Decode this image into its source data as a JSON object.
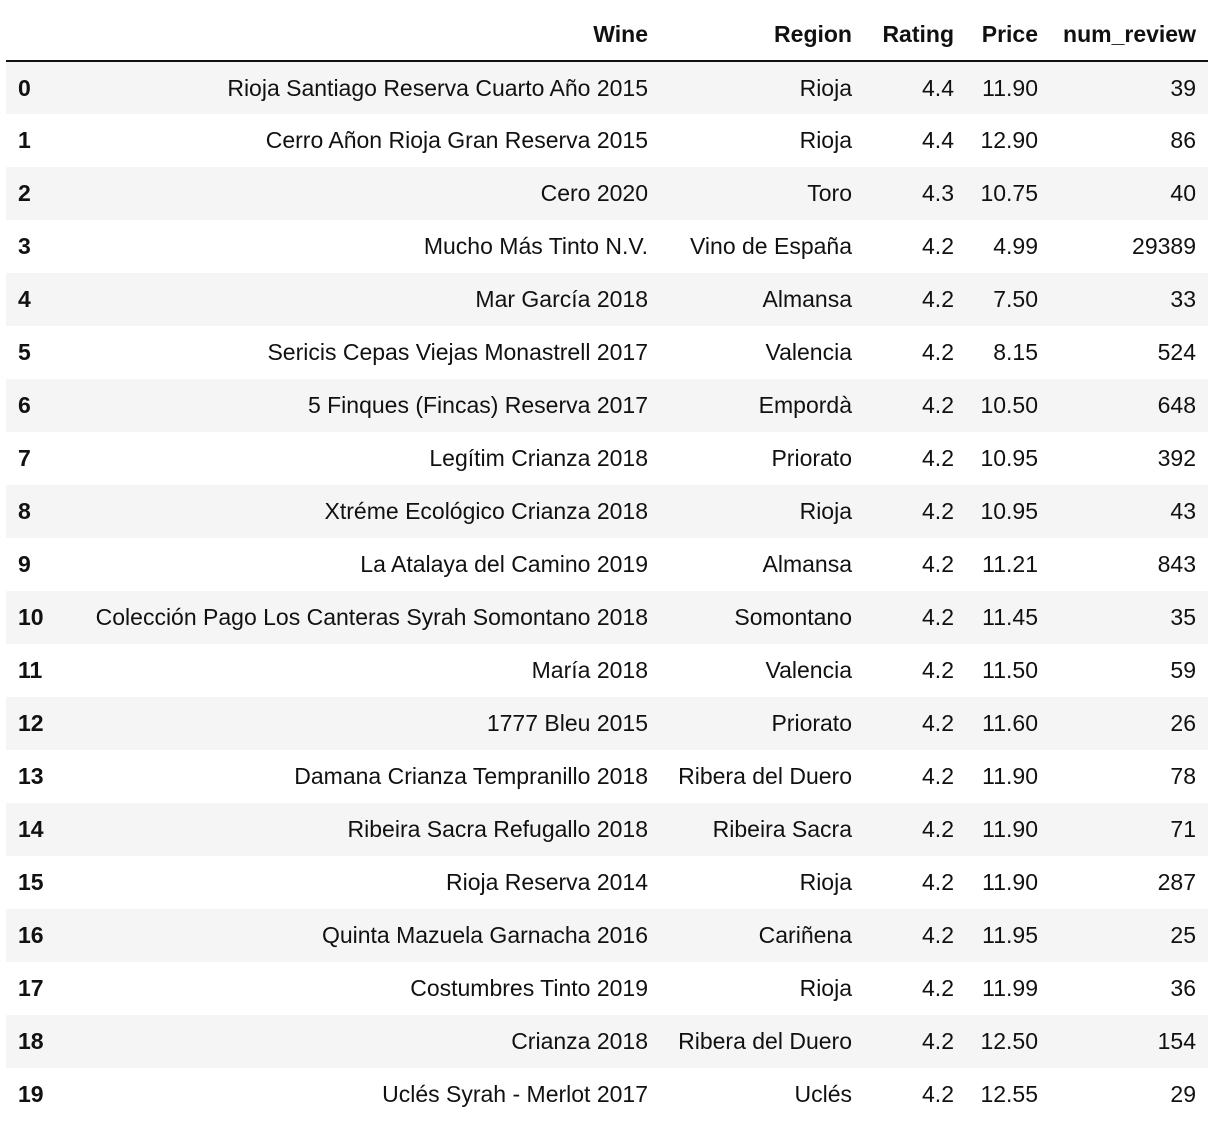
{
  "table": {
    "columns": [
      "Wine",
      "Region",
      "Rating",
      "Price",
      "num_review"
    ],
    "rows": [
      {
        "index": "0",
        "wine": "Rioja Santiago Reserva Cuarto Año 2015",
        "region": "Rioja",
        "rating": "4.4",
        "price": "11.90",
        "num_review": "39"
      },
      {
        "index": "1",
        "wine": "Cerro Añon Rioja Gran Reserva 2015",
        "region": "Rioja",
        "rating": "4.4",
        "price": "12.90",
        "num_review": "86"
      },
      {
        "index": "2",
        "wine": "Cero 2020",
        "region": "Toro",
        "rating": "4.3",
        "price": "10.75",
        "num_review": "40"
      },
      {
        "index": "3",
        "wine": "Mucho Más Tinto N.V.",
        "region": "Vino de España",
        "rating": "4.2",
        "price": "4.99",
        "num_review": "29389"
      },
      {
        "index": "4",
        "wine": "Mar García 2018",
        "region": "Almansa",
        "rating": "4.2",
        "price": "7.50",
        "num_review": "33"
      },
      {
        "index": "5",
        "wine": "Sericis Cepas Viejas Monastrell 2017",
        "region": "Valencia",
        "rating": "4.2",
        "price": "8.15",
        "num_review": "524"
      },
      {
        "index": "6",
        "wine": "5 Finques (Fincas) Reserva 2017",
        "region": "Empordà",
        "rating": "4.2",
        "price": "10.50",
        "num_review": "648"
      },
      {
        "index": "7",
        "wine": "Legítim Crianza 2018",
        "region": "Priorato",
        "rating": "4.2",
        "price": "10.95",
        "num_review": "392"
      },
      {
        "index": "8",
        "wine": "Xtréme Ecológico Crianza 2018",
        "region": "Rioja",
        "rating": "4.2",
        "price": "10.95",
        "num_review": "43"
      },
      {
        "index": "9",
        "wine": "La Atalaya del Camino 2019",
        "region": "Almansa",
        "rating": "4.2",
        "price": "11.21",
        "num_review": "843"
      },
      {
        "index": "10",
        "wine": "Colección Pago Los Canteras Syrah Somontano 2018",
        "region": "Somontano",
        "rating": "4.2",
        "price": "11.45",
        "num_review": "35"
      },
      {
        "index": "11",
        "wine": "María 2018",
        "region": "Valencia",
        "rating": "4.2",
        "price": "11.50",
        "num_review": "59"
      },
      {
        "index": "12",
        "wine": "1777 Bleu 2015",
        "region": "Priorato",
        "rating": "4.2",
        "price": "11.60",
        "num_review": "26"
      },
      {
        "index": "13",
        "wine": "Damana Crianza Tempranillo 2018",
        "region": "Ribera del Duero",
        "rating": "4.2",
        "price": "11.90",
        "num_review": "78"
      },
      {
        "index": "14",
        "wine": "Ribeira Sacra Refugallo 2018",
        "region": "Ribeira Sacra",
        "rating": "4.2",
        "price": "11.90",
        "num_review": "71"
      },
      {
        "index": "15",
        "wine": "Rioja Reserva 2014",
        "region": "Rioja",
        "rating": "4.2",
        "price": "11.90",
        "num_review": "287"
      },
      {
        "index": "16",
        "wine": "Quinta Mazuela Garnacha 2016",
        "region": "Cariñena",
        "rating": "4.2",
        "price": "11.95",
        "num_review": "25"
      },
      {
        "index": "17",
        "wine": "Costumbres Tinto 2019",
        "region": "Rioja",
        "rating": "4.2",
        "price": "11.99",
        "num_review": "36"
      },
      {
        "index": "18",
        "wine": "Crianza 2018",
        "region": "Ribera del Duero",
        "rating": "4.2",
        "price": "12.50",
        "num_review": "154"
      },
      {
        "index": "19",
        "wine": "Uclés Syrah - Merlot 2017",
        "region": "Uclés",
        "rating": "4.2",
        "price": "12.55",
        "num_review": "29"
      }
    ]
  }
}
